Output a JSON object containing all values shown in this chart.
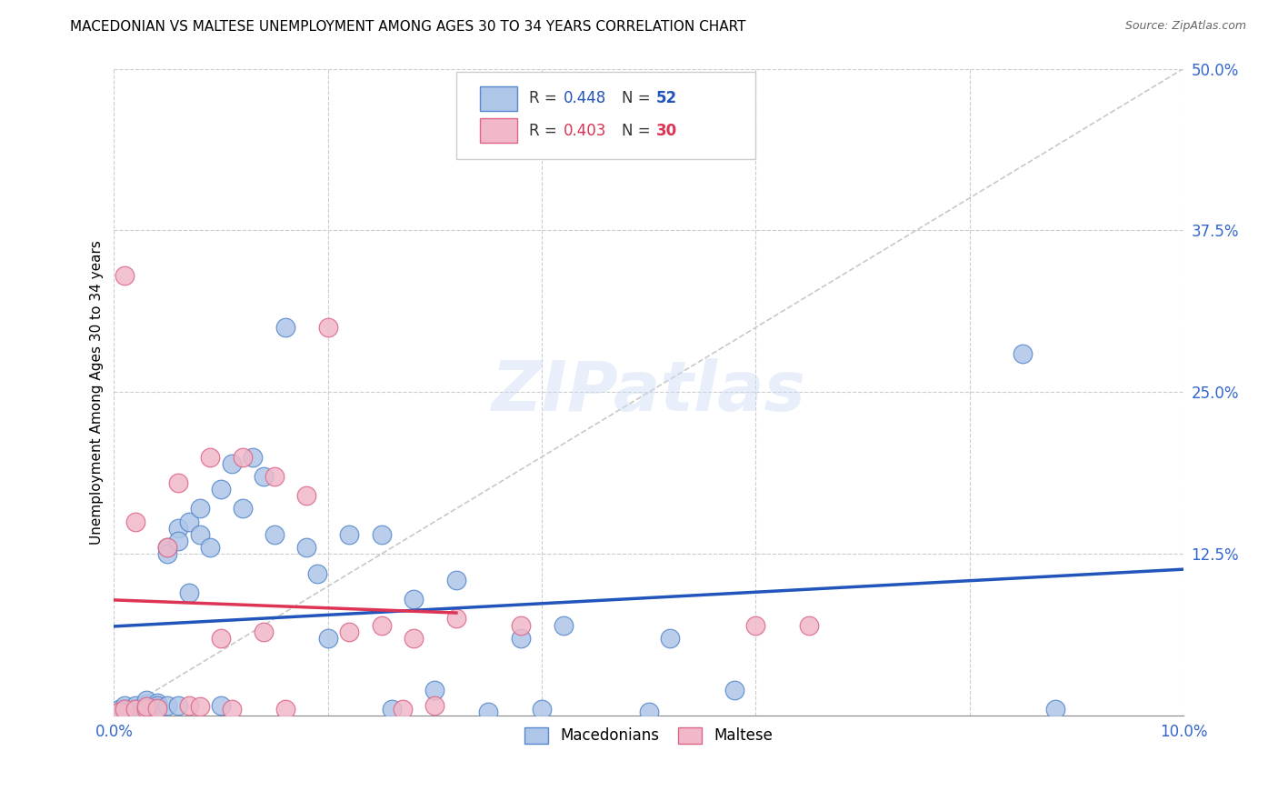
{
  "title": "MACEDONIAN VS MALTESE UNEMPLOYMENT AMONG AGES 30 TO 34 YEARS CORRELATION CHART",
  "source": "Source: ZipAtlas.com",
  "ylabel": "Unemployment Among Ages 30 to 34 years",
  "xlim": [
    0.0,
    0.1
  ],
  "ylim": [
    0.0,
    0.5
  ],
  "xticks": [
    0.0,
    0.02,
    0.04,
    0.06,
    0.08,
    0.1
  ],
  "yticks": [
    0.0,
    0.125,
    0.25,
    0.375,
    0.5
  ],
  "xticklabels": [
    "0.0%",
    "",
    "",
    "",
    "",
    "10.0%"
  ],
  "yticklabels": [
    "",
    "12.5%",
    "25.0%",
    "37.5%",
    "50.0%"
  ],
  "blue_color": "#aec6e8",
  "pink_color": "#f0b8c8",
  "blue_edge": "#5588cc",
  "pink_edge": "#dd6688",
  "blue_line_color": "#2255bb",
  "pink_line_color": "#dd3355",
  "R_blue": 0.448,
  "N_blue": 52,
  "R_pink": 0.403,
  "N_pink": 30,
  "macedonian_x": [
    0.0005,
    0.001,
    0.001,
    0.001,
    0.0015,
    0.002,
    0.002,
    0.002,
    0.003,
    0.003,
    0.003,
    0.003,
    0.004,
    0.004,
    0.004,
    0.005,
    0.005,
    0.005,
    0.006,
    0.006,
    0.006,
    0.007,
    0.007,
    0.008,
    0.008,
    0.009,
    0.01,
    0.01,
    0.011,
    0.012,
    0.013,
    0.014,
    0.015,
    0.016,
    0.018,
    0.019,
    0.02,
    0.022,
    0.025,
    0.026,
    0.028,
    0.03,
    0.032,
    0.035,
    0.038,
    0.04,
    0.042,
    0.05,
    0.052,
    0.058,
    0.085,
    0.088
  ],
  "macedonian_y": [
    0.005,
    0.003,
    0.006,
    0.008,
    0.004,
    0.003,
    0.006,
    0.008,
    0.005,
    0.007,
    0.009,
    0.012,
    0.01,
    0.008,
    0.005,
    0.13,
    0.125,
    0.008,
    0.145,
    0.135,
    0.008,
    0.15,
    0.095,
    0.16,
    0.14,
    0.13,
    0.175,
    0.008,
    0.195,
    0.16,
    0.2,
    0.185,
    0.14,
    0.3,
    0.13,
    0.11,
    0.06,
    0.14,
    0.14,
    0.005,
    0.09,
    0.02,
    0.105,
    0.003,
    0.06,
    0.005,
    0.07,
    0.003,
    0.06,
    0.02,
    0.28,
    0.005
  ],
  "maltese_x": [
    0.0005,
    0.001,
    0.001,
    0.002,
    0.002,
    0.003,
    0.003,
    0.004,
    0.005,
    0.006,
    0.007,
    0.008,
    0.009,
    0.01,
    0.011,
    0.012,
    0.014,
    0.015,
    0.016,
    0.018,
    0.02,
    0.022,
    0.025,
    0.027,
    0.028,
    0.03,
    0.032,
    0.038,
    0.06,
    0.065
  ],
  "maltese_y": [
    0.003,
    0.005,
    0.34,
    0.005,
    0.15,
    0.005,
    0.007,
    0.006,
    0.13,
    0.18,
    0.008,
    0.007,
    0.2,
    0.06,
    0.005,
    0.2,
    0.065,
    0.185,
    0.005,
    0.17,
    0.3,
    0.065,
    0.07,
    0.005,
    0.06,
    0.008,
    0.075,
    0.07,
    0.07,
    0.07
  ]
}
